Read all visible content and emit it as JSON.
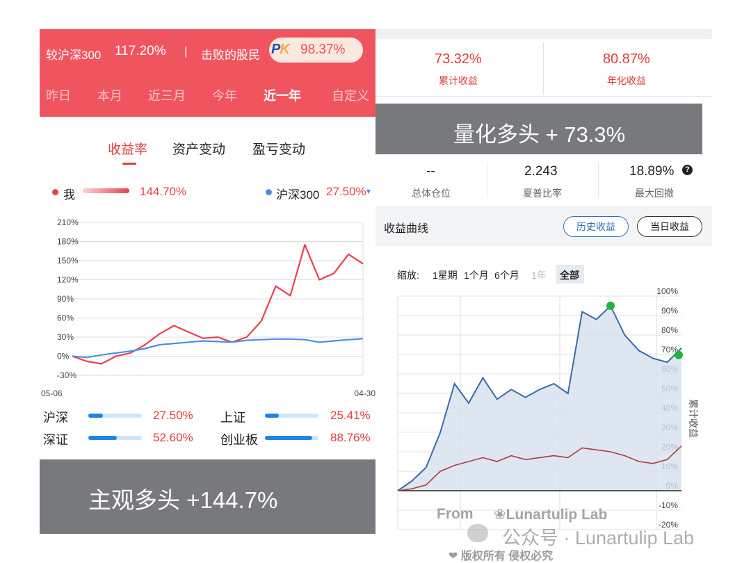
{
  "left": {
    "header": {
      "vs_label": "较沪深300",
      "vs_value": "117.20%",
      "separator": "|",
      "beat_label": "击败的股民",
      "pk_p": "P",
      "pk_k": "K",
      "beat_value": "98.37%"
    },
    "ranges": [
      {
        "label": "昨日"
      },
      {
        "label": "本月"
      },
      {
        "label": "近三月"
      },
      {
        "label": "今年"
      },
      {
        "label": "近一年"
      },
      {
        "label": "自定义"
      }
    ],
    "active_range": "近一年",
    "sub_tabs": [
      {
        "label": "收益率"
      },
      {
        "label": "资产变动"
      },
      {
        "label": "盈亏变动"
      }
    ],
    "legend": {
      "me_label": "我",
      "me_value": "144.70%",
      "bench_label": "沪深300",
      "bench_value": "27.50%",
      "bench_caret": "▾"
    },
    "stats": [
      {
        "label": "沪深",
        "value": "27.50%",
        "fill": 0.275
      },
      {
        "label": "上证",
        "value": "25.41%",
        "fill": 0.254
      },
      {
        "label": "深证",
        "value": "52.60%",
        "fill": 0.526
      },
      {
        "label": "创业板",
        "value": "88.76%",
        "fill": 0.888
      }
    ],
    "banner": "主观多头 +144.7%",
    "colors": {
      "header": "#f0555f",
      "me_line": "#e8414d",
      "bench_line": "#4a8fe6"
    }
  },
  "right": {
    "kpis": [
      {
        "value": "73.32%",
        "label": "累计收益"
      },
      {
        "value": "80.87%",
        "label": "年化收益"
      }
    ],
    "banner": "量化多头 + 73.3%",
    "metrics": [
      {
        "value": "--",
        "label": "总体仓位"
      },
      {
        "value": "2.243",
        "label": "夏普比率"
      },
      {
        "value": "18.89%",
        "label": "最大回撤"
      }
    ],
    "help_icon": "?",
    "curve_title": "收益曲线",
    "buttons": {
      "history": "历史收益",
      "today": "当日收益"
    },
    "zoom_label": "缩放:",
    "zoom_options": [
      {
        "label": "1星期"
      },
      {
        "label": "1个月"
      },
      {
        "label": "6个月"
      },
      {
        "label": "1年"
      },
      {
        "label": "全部"
      }
    ],
    "y_axis_title": "累计收益",
    "colors": {
      "strategy_line": "#3b6aa8",
      "bench_line": "#b03a3a",
      "area": "#d6e0ee",
      "marker": "#1fb53a"
    }
  },
  "watermark": {
    "from": "From",
    "brand": "❀Lunartulip Lab",
    "account": "公众号 · Lunartulip Lab",
    "copyright": "❤ 版权所有 侵权必究"
  },
  "chart_data": [
    {
      "type": "line",
      "ylim": [
        -30,
        210
      ],
      "y_ticks": [
        "210%",
        "180%",
        "150%",
        "120%",
        "90%",
        "60%",
        "30%",
        "0%",
        "-30%"
      ],
      "x_ticks": [
        "05-06",
        "04-30"
      ],
      "x": [
        0,
        5,
        10,
        15,
        20,
        25,
        30,
        35,
        40,
        45,
        50,
        55,
        60,
        65,
        70,
        75,
        80,
        85,
        90,
        95,
        100
      ],
      "series": [
        {
          "name": "我",
          "values": [
            0,
            -8,
            -12,
            0,
            5,
            18,
            35,
            48,
            38,
            28,
            30,
            22,
            30,
            55,
            110,
            95,
            175,
            120,
            130,
            160,
            145
          ]
        },
        {
          "name": "沪深300",
          "values": [
            0,
            -2,
            2,
            5,
            8,
            12,
            18,
            20,
            22,
            24,
            23,
            22,
            25,
            26,
            27,
            27,
            26,
            22,
            24,
            26,
            27.5
          ]
        }
      ]
    },
    {
      "type": "area",
      "ylim": [
        -20,
        100
      ],
      "y_ticks": [
        "100%",
        "90%",
        "80%",
        "70%",
        "60%",
        "50%",
        "40%",
        "30%",
        "20%",
        "10%",
        "0%",
        "-10%",
        "-20%"
      ],
      "ylabel": "累计收益",
      "x": [
        0,
        5,
        10,
        15,
        20,
        25,
        30,
        35,
        40,
        45,
        50,
        55,
        60,
        65,
        70,
        75,
        80,
        85,
        90,
        95,
        100
      ],
      "series": [
        {
          "values": [
            0,
            5,
            12,
            30,
            55,
            45,
            58,
            47,
            52,
            48,
            52,
            55,
            50,
            92,
            88,
            95,
            80,
            72,
            68,
            66,
            73.3
          ]
        },
        {
          "values": [
            0,
            1,
            3,
            10,
            13,
            15,
            17,
            15,
            18,
            16,
            17,
            18,
            17,
            22,
            21,
            20,
            18,
            15,
            14,
            16,
            23
          ]
        }
      ]
    }
  ]
}
